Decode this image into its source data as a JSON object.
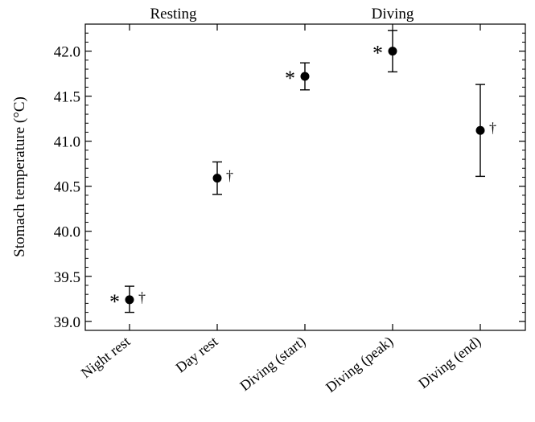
{
  "chart_data": {
    "type": "scatter",
    "ylabel": "Stomach temperature (°C)",
    "xlabel": "",
    "ylim": [
      38.9,
      42.3
    ],
    "yticks": [
      39.0,
      39.5,
      40.0,
      40.5,
      41.0,
      41.5,
      42.0
    ],
    "ytick_labels": [
      "39.0",
      "39.5",
      "40.0",
      "40.5",
      "41.0",
      "41.5",
      "42.0"
    ],
    "grid": false,
    "group_labels": [
      {
        "text": "Resting",
        "categories": [
          0,
          1
        ]
      },
      {
        "text": "Diving",
        "categories": [
          2,
          3,
          4
        ]
      }
    ],
    "categories": [
      "Night rest",
      "Day rest",
      "Diving (start)",
      "Diving (peak)",
      "Diving (end)"
    ],
    "points": [
      {
        "category": "Night rest",
        "y": 39.24,
        "err_low": 39.1,
        "err_high": 39.39,
        "left_mark": "*",
        "right_mark": "†"
      },
      {
        "category": "Day rest",
        "y": 40.59,
        "err_low": 40.41,
        "err_high": 40.77,
        "left_mark": "",
        "right_mark": "†"
      },
      {
        "category": "Diving (start)",
        "y": 41.72,
        "err_low": 41.57,
        "err_high": 41.87,
        "left_mark": "*",
        "right_mark": ""
      },
      {
        "category": "Diving (peak)",
        "y": 42.0,
        "err_low": 41.77,
        "err_high": 42.23,
        "left_mark": "*",
        "right_mark": ""
      },
      {
        "category": "Diving (end)",
        "y": 41.12,
        "err_low": 40.61,
        "err_high": 41.63,
        "left_mark": "",
        "right_mark": "†"
      }
    ]
  }
}
